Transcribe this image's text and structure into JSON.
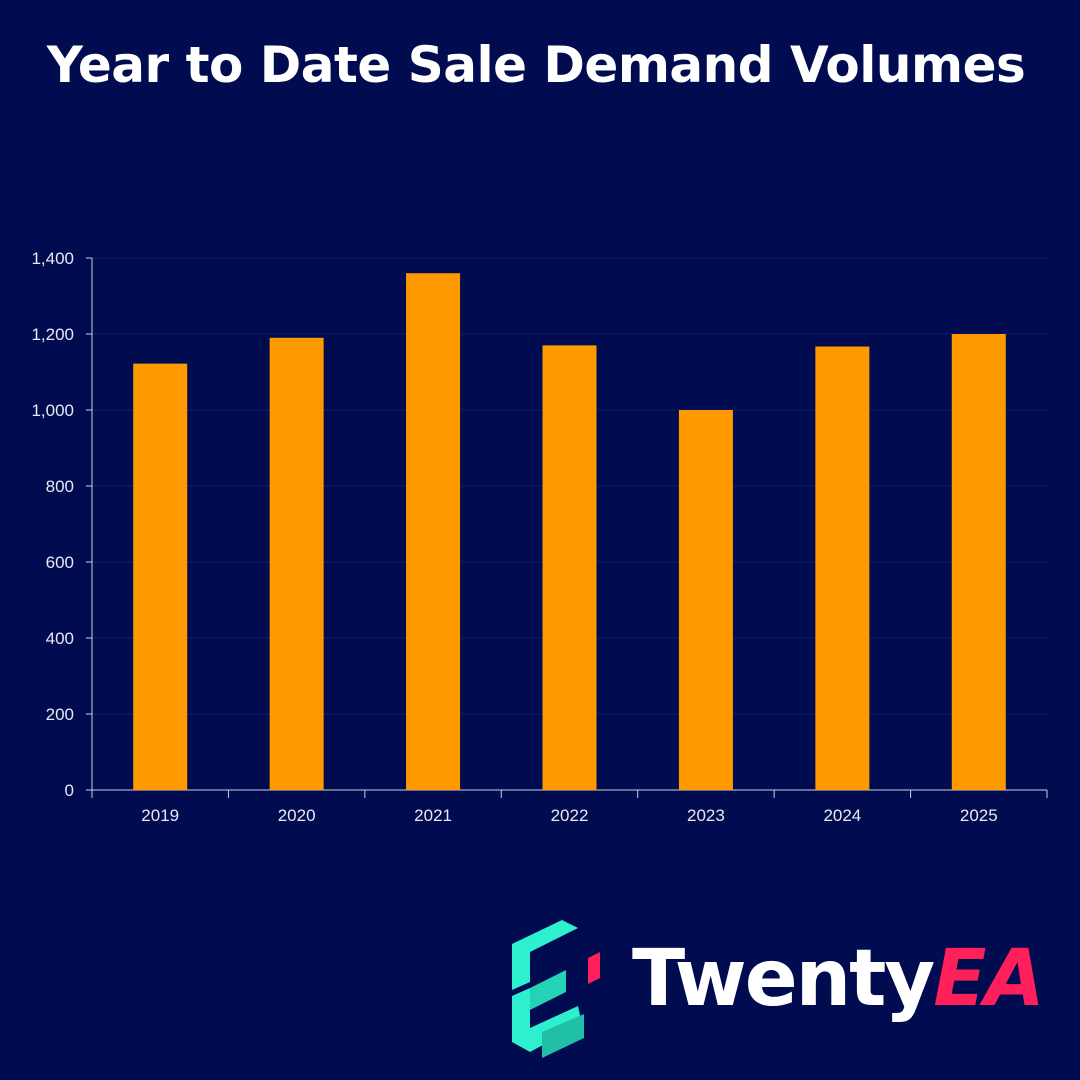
{
  "title": "Year to Date Sale Demand Volumes",
  "colors": {
    "background": "#000c4f",
    "bar": "#ff9900",
    "gridline": "#0e1a7a",
    "axis": "#c9cbe0",
    "logo_mark": "#2ef0cf",
    "logo_accent": "#ff1f5a"
  },
  "chart_data": {
    "type": "bar",
    "title": "Year to Date Sale Demand Volumes",
    "categories": [
      "2019",
      "2020",
      "2021",
      "2022",
      "2023",
      "2024",
      "2025"
    ],
    "values": [
      1122,
      1190,
      1360,
      1170,
      1000,
      1167,
      1200
    ],
    "ylim": [
      0,
      1400
    ],
    "yticks": [
      0,
      200,
      400,
      600,
      800,
      1000,
      1200,
      1400
    ],
    "ytick_labels": [
      "0",
      "200",
      "400",
      "600",
      "800",
      "1,000",
      "1,200",
      "1,400"
    ],
    "xlabel": "",
    "ylabel": "",
    "grid": true,
    "legend": "none"
  },
  "logo": {
    "name_main": "Twenty",
    "name_accent": "EA",
    "icon": "twentyea-e-mark-icon"
  }
}
